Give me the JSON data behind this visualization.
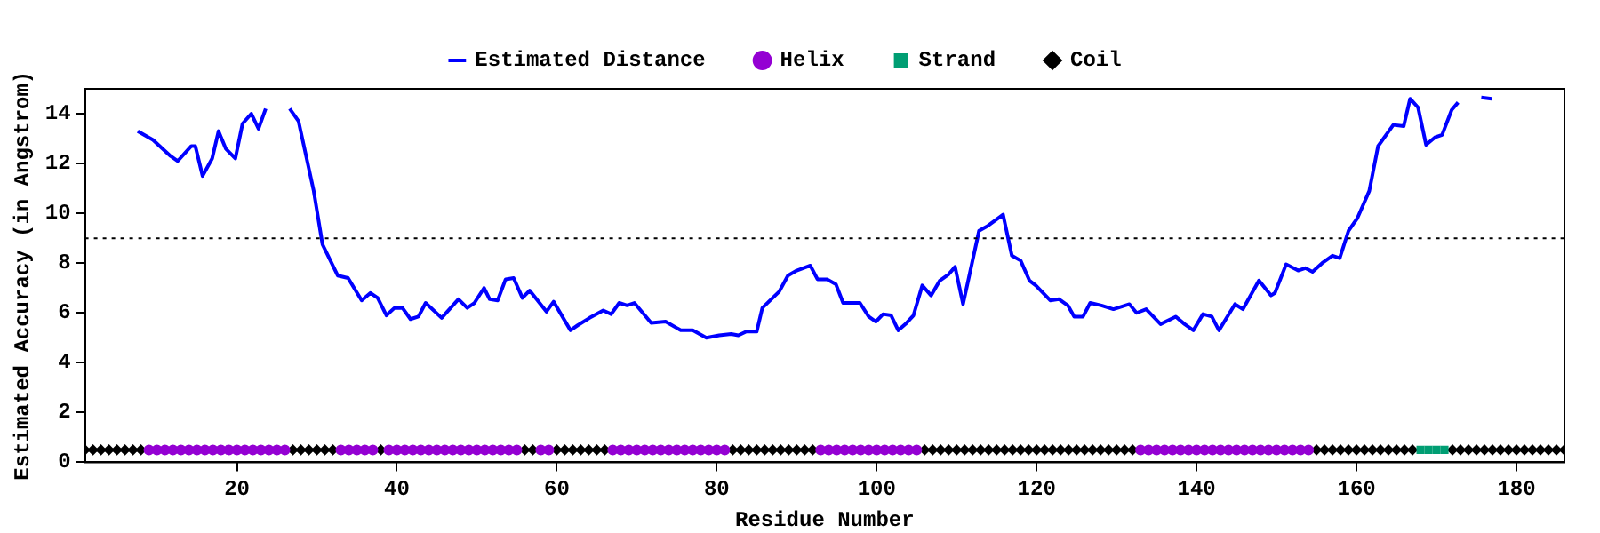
{
  "chart_data": {
    "type": "line",
    "xlabel": "Residue Number",
    "ylabel": "Estimated Accuracy (in Angstrom)",
    "xlim": [
      1,
      186
    ],
    "xticks": [
      20,
      40,
      60,
      80,
      100,
      120,
      140,
      160,
      180
    ],
    "ylim": [
      0,
      15
    ],
    "yticks": [
      0,
      2,
      4,
      6,
      8,
      10,
      12,
      14
    ],
    "grid": false,
    "legend": "top",
    "ref_lines": [
      {
        "axis": "y",
        "value": 9,
        "color": "#000000",
        "line_style": "dotted"
      }
    ],
    "series": [
      {
        "name": "Estimated Distance",
        "color": "#0000ff",
        "marker": "none",
        "line_style": "solid",
        "x": [
          7.6,
          9.5,
          11.7,
          12.6,
          14.3,
          14.8,
          15.7,
          16.9,
          17.7,
          18.6,
          19.8,
          20.7,
          21.8,
          22.7,
          23.6,
          24.4,
          25.9,
          26.6,
          27.7,
          29.6,
          30.7,
          32.6,
          33.9,
          35.6,
          36.7,
          37.6,
          38.7,
          39.7,
          40.7,
          41.7,
          42.7,
          43.6,
          45.6,
          47.7,
          48.8,
          49.7,
          50.9,
          51.6,
          52.6,
          53.6,
          54.6,
          55.7,
          56.6,
          58.7,
          59.6,
          61.7,
          62.6,
          64.1,
          65.8,
          66.8,
          67.8,
          68.8,
          69.7,
          71.8,
          73.6,
          75.5,
          77.0,
          78.7,
          80.3,
          81.8,
          82.7,
          83.7,
          85.0,
          85.7,
          87.8,
          88.9,
          90.0,
          91.7,
          92.6,
          93.8,
          94.9,
          95.8,
          97.9,
          99.0,
          99.9,
          100.8,
          101.8,
          102.7,
          103.6,
          104.6,
          105.7,
          106.8,
          107.9,
          109.0,
          109.8,
          110.8,
          112.8,
          113.9,
          115.8,
          116.9,
          118.0,
          119.1,
          119.9,
          121.7,
          122.8,
          123.9,
          124.7,
          125.8,
          126.7,
          128.1,
          129.6,
          131.6,
          132.5,
          133.7,
          135.5,
          137.4,
          138.5,
          139.6,
          140.8,
          141.9,
          142.8,
          144.8,
          145.8,
          147.8,
          149.3,
          149.8,
          151.2,
          152.7,
          153.6,
          154.5,
          155.7,
          157.0,
          157.9,
          159.0,
          160.1,
          161.6,
          162.7,
          164.6,
          165.9,
          166.7,
          167.7,
          168.7,
          169.8,
          170.7,
          171.9,
          172.7,
          173.6,
          175.0,
          175.6,
          176.9
        ],
        "values": [
          13.3,
          12.95,
          12.3,
          12.1,
          12.7,
          12.7,
          11.5,
          12.2,
          13.3,
          12.6,
          12.2,
          13.6,
          14.0,
          13.4,
          14.2,
          null,
          null,
          14.2,
          13.7,
          10.9,
          8.75,
          7.5,
          7.4,
          6.5,
          6.8,
          6.6,
          5.9,
          6.2,
          6.2,
          5.75,
          5.85,
          6.4,
          5.8,
          6.55,
          6.2,
          6.4,
          7.0,
          6.55,
          6.5,
          7.35,
          7.4,
          6.6,
          6.9,
          6.05,
          6.45,
          5.3,
          5.5,
          5.8,
          6.1,
          5.95,
          6.4,
          6.3,
          6.4,
          5.6,
          5.65,
          5.3,
          5.3,
          5.0,
          5.1,
          5.15,
          5.1,
          5.25,
          5.25,
          6.2,
          6.85,
          7.5,
          7.7,
          7.9,
          7.35,
          7.35,
          7.15,
          6.4,
          6.4,
          5.85,
          5.65,
          5.95,
          5.9,
          5.3,
          5.55,
          5.9,
          7.1,
          6.7,
          7.3,
          7.55,
          7.85,
          6.35,
          9.3,
          9.5,
          9.95,
          8.3,
          8.1,
          7.3,
          7.1,
          6.5,
          6.55,
          6.3,
          5.85,
          5.85,
          6.4,
          6.3,
          6.15,
          6.35,
          6.0,
          6.15,
          5.55,
          5.85,
          5.55,
          5.3,
          5.95,
          5.85,
          5.3,
          6.35,
          6.15,
          7.3,
          6.7,
          6.8,
          7.95,
          7.7,
          7.8,
          7.65,
          8.0,
          8.3,
          8.2,
          9.3,
          9.8,
          10.9,
          12.7,
          13.55,
          13.5,
          14.6,
          14.25,
          12.75,
          13.05,
          13.15,
          14.15,
          14.45,
          null,
          null,
          14.65,
          14.6
        ]
      },
      {
        "name": "Helix",
        "type": "scatter",
        "color": "#9400d3",
        "marker": "circle",
        "x": [
          9,
          10,
          11,
          12,
          13,
          14,
          15,
          16,
          17,
          18,
          19,
          20,
          21,
          22,
          23,
          24,
          25,
          26,
          33,
          34,
          35,
          36,
          37,
          39,
          40,
          41,
          42,
          43,
          44,
          45,
          46,
          47,
          48,
          49,
          50,
          51,
          52,
          53,
          54,
          55,
          58,
          59,
          67,
          68,
          69,
          70,
          71,
          72,
          73,
          74,
          75,
          76,
          77,
          78,
          79,
          80,
          81,
          93,
          94,
          95,
          96,
          97,
          98,
          99,
          100,
          101,
          102,
          103,
          104,
          105,
          133,
          134,
          135,
          136,
          137,
          138,
          139,
          140,
          141,
          142,
          143,
          144,
          145,
          146,
          147,
          148,
          149,
          150,
          151,
          152,
          153,
          154
        ],
        "values": [
          0.5,
          0.5,
          0.5,
          0.5,
          0.5,
          0.5,
          0.5,
          0.5,
          0.5,
          0.5,
          0.5,
          0.5,
          0.5,
          0.5,
          0.5,
          0.5,
          0.5,
          0.5,
          0.5,
          0.5,
          0.5,
          0.5,
          0.5,
          0.5,
          0.5,
          0.5,
          0.5,
          0.5,
          0.5,
          0.5,
          0.5,
          0.5,
          0.5,
          0.5,
          0.5,
          0.5,
          0.5,
          0.5,
          0.5,
          0.5,
          0.5,
          0.5,
          0.5,
          0.5,
          0.5,
          0.5,
          0.5,
          0.5,
          0.5,
          0.5,
          0.5,
          0.5,
          0.5,
          0.5,
          0.5,
          0.5,
          0.5,
          0.5,
          0.5,
          0.5,
          0.5,
          0.5,
          0.5,
          0.5,
          0.5,
          0.5,
          0.5,
          0.5,
          0.5,
          0.5,
          0.5,
          0.5,
          0.5,
          0.5,
          0.5,
          0.5,
          0.5,
          0.5,
          0.5,
          0.5,
          0.5,
          0.5,
          0.5,
          0.5,
          0.5,
          0.5,
          0.5,
          0.5,
          0.5,
          0.5,
          0.5,
          0.5
        ]
      },
      {
        "name": "Strand",
        "type": "scatter",
        "color": "#009e73",
        "marker": "square",
        "x": [
          168,
          169,
          170,
          171
        ],
        "values": [
          0.5,
          0.5,
          0.5,
          0.5
        ]
      },
      {
        "name": "Coil",
        "type": "scatter",
        "color": "#000000",
        "marker": "diamond",
        "x": [
          1,
          2,
          3,
          4,
          5,
          6,
          7,
          8,
          27,
          28,
          29,
          30,
          31,
          32,
          38,
          56,
          57,
          60,
          61,
          62,
          63,
          64,
          65,
          66,
          82,
          83,
          84,
          85,
          86,
          87,
          88,
          89,
          90,
          91,
          92,
          106,
          107,
          108,
          109,
          110,
          111,
          112,
          113,
          114,
          115,
          116,
          117,
          118,
          119,
          120,
          121,
          122,
          123,
          124,
          125,
          126,
          127,
          128,
          129,
          130,
          131,
          132,
          155,
          156,
          157,
          158,
          159,
          160,
          161,
          162,
          163,
          164,
          165,
          166,
          167,
          172,
          173,
          174,
          175,
          176,
          177,
          178,
          179,
          180,
          181,
          182,
          183,
          184,
          185,
          186
        ],
        "values": [
          0.5,
          0.5,
          0.5,
          0.5,
          0.5,
          0.5,
          0.5,
          0.5,
          0.5,
          0.5,
          0.5,
          0.5,
          0.5,
          0.5,
          0.5,
          0.5,
          0.5,
          0.5,
          0.5,
          0.5,
          0.5,
          0.5,
          0.5,
          0.5,
          0.5,
          0.5,
          0.5,
          0.5,
          0.5,
          0.5,
          0.5,
          0.5,
          0.5,
          0.5,
          0.5,
          0.5,
          0.5,
          0.5,
          0.5,
          0.5,
          0.5,
          0.5,
          0.5,
          0.5,
          0.5,
          0.5,
          0.5,
          0.5,
          0.5,
          0.5,
          0.5,
          0.5,
          0.5,
          0.5,
          0.5,
          0.5,
          0.5,
          0.5,
          0.5,
          0.5,
          0.5,
          0.5,
          0.5,
          0.5,
          0.5,
          0.5,
          0.5,
          0.5,
          0.5,
          0.5,
          0.5,
          0.5,
          0.5,
          0.5,
          0.5,
          0.5,
          0.5,
          0.5,
          0.5,
          0.5,
          0.5,
          0.5,
          0.5,
          0.5,
          0.5,
          0.5,
          0.5,
          0.5,
          0.5,
          0.5
        ]
      }
    ]
  }
}
